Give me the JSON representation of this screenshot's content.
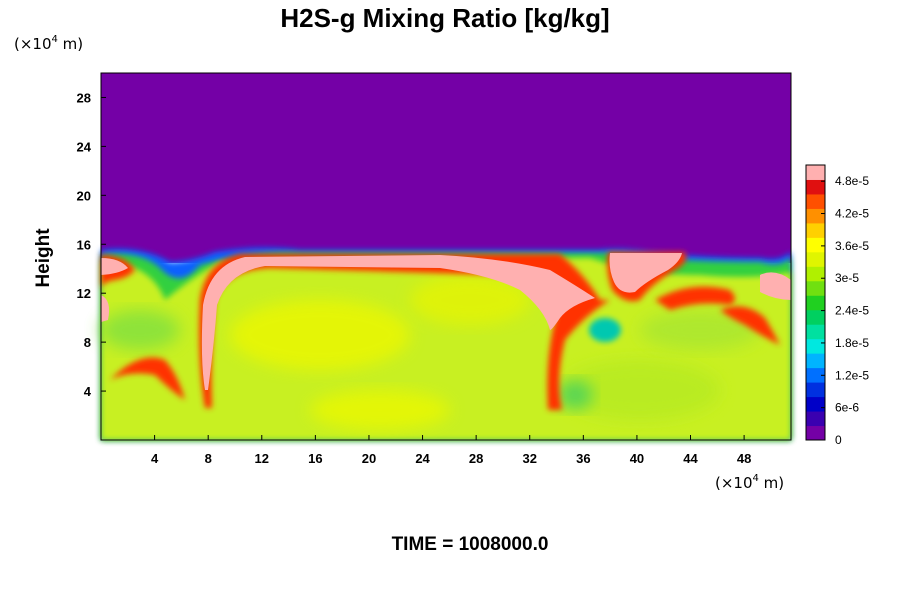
{
  "chart_data": {
    "type": "heatmap",
    "title": "H2S-g Mixing Ratio [kg/kg]",
    "ylabel": "Height",
    "y_unit": "(×10",
    "y_unit_exp": "4",
    "y_unit_tail": " m)",
    "x_unit": "(×10",
    "x_unit_exp": "4",
    "x_unit_tail": " m)",
    "xlim": [
      0,
      51.5
    ],
    "ylim": [
      0,
      30
    ],
    "x_ticks": [
      {
        "value": 4,
        "label": "4"
      },
      {
        "value": 8,
        "label": "8"
      },
      {
        "value": 12,
        "label": "12"
      },
      {
        "value": 16,
        "label": "16"
      },
      {
        "value": 20,
        "label": "20"
      },
      {
        "value": 24,
        "label": "24"
      },
      {
        "value": 28,
        "label": "28"
      },
      {
        "value": 32,
        "label": "32"
      },
      {
        "value": 36,
        "label": "36"
      },
      {
        "value": 40,
        "label": "40"
      },
      {
        "value": 44,
        "label": "44"
      },
      {
        "value": 48,
        "label": "48"
      }
    ],
    "y_ticks": [
      {
        "value": 4,
        "label": "4"
      },
      {
        "value": 8,
        "label": "8"
      },
      {
        "value": 12,
        "label": "12"
      },
      {
        "value": 16,
        "label": "16"
      },
      {
        "value": 20,
        "label": "20"
      },
      {
        "value": 24,
        "label": "24"
      },
      {
        "value": 28,
        "label": "28"
      }
    ],
    "colorbar": {
      "min": 0,
      "max": 5.1e-05,
      "tick_labels": [
        "0",
        "6e-6",
        "1.2e-5",
        "1.8e-5",
        "2.4e-5",
        "3e-5",
        "3.6e-5",
        "4.2e-5",
        "4.8e-5"
      ],
      "tick_values": [
        0,
        6e-06,
        1.2e-05,
        1.8e-05,
        2.4e-05,
        3e-05,
        3.6e-05,
        4.2e-05,
        4.8e-05
      ],
      "colors": [
        "#7400a6",
        "#3a00b0",
        "#0000c8",
        "#0030e0",
        "#0070ff",
        "#00b4ff",
        "#00e8e0",
        "#00e0a0",
        "#00d060",
        "#20d020",
        "#70e010",
        "#b0f000",
        "#e0f500",
        "#ffff00",
        "#ffd000",
        "#ff9000",
        "#ff5000",
        "#e01010",
        "#ffb0b0"
      ]
    },
    "regions": [
      {
        "name": "upper layer",
        "x": [
          0,
          51.5
        ],
        "y": [
          15.5,
          30
        ],
        "value": 0
      },
      {
        "name": "mixed layer",
        "x": [
          0,
          51.5
        ],
        "y": [
          0,
          15
        ],
        "value": 3.3e-05
      },
      {
        "name": "upper plume",
        "x": [
          9,
          32
        ],
        "y": [
          12,
          15.3
        ],
        "value": 5.1e-05
      },
      {
        "name": "right plume",
        "x": [
          37.5,
          42
        ],
        "y": [
          12.5,
          15.3
        ],
        "value": 5.1e-05
      }
    ],
    "footer": "TIME = 1008000.0"
  }
}
